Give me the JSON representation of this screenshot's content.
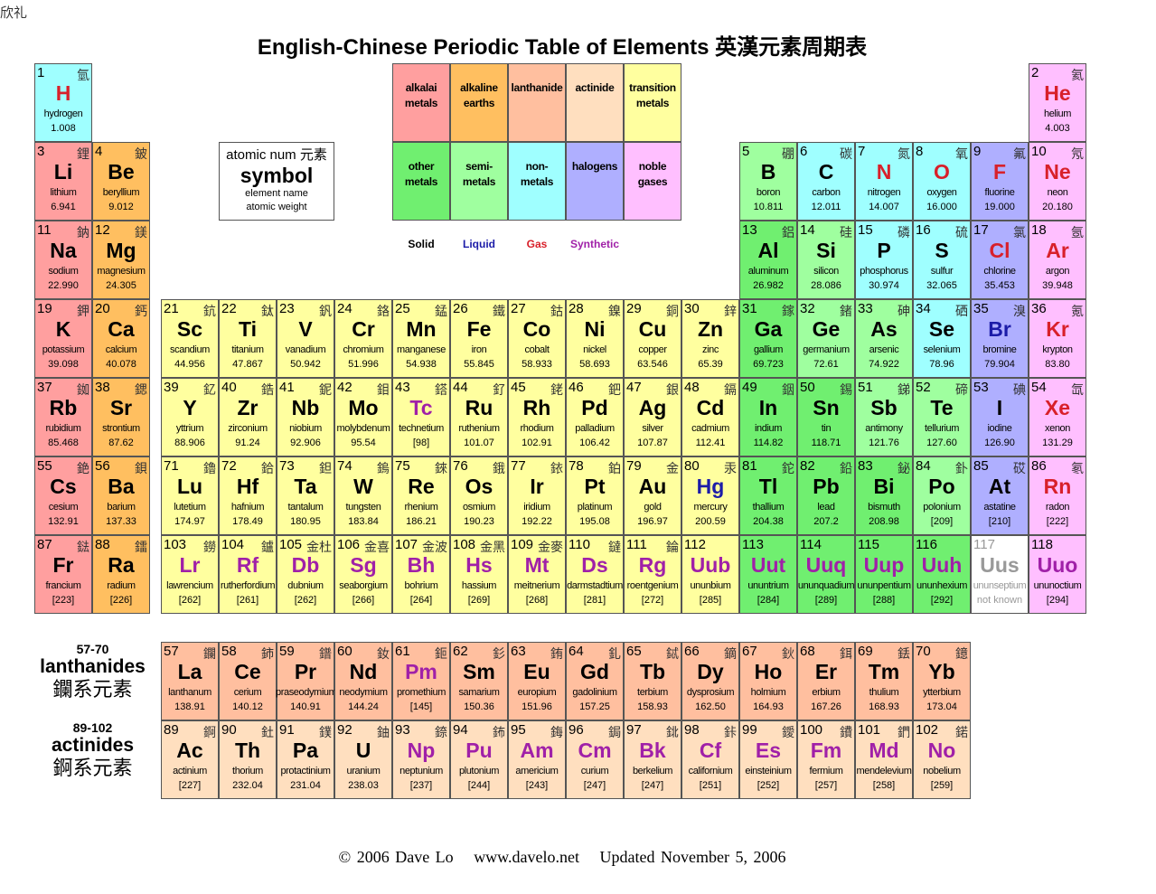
{
  "corner_text": "欣礼",
  "title": "English-Chinese Periodic Table of Elements 英漢元素周期表",
  "key": {
    "line1": "atomic num 元素",
    "line2": "symbol",
    "line3": "element name",
    "line4": "atomic weight"
  },
  "categories": {
    "alkali": {
      "label": "alkalai metals",
      "color": "#ff9f9f"
    },
    "alkaline": {
      "label": "alkaline earths",
      "color": "#ffbf60"
    },
    "lanthanide": {
      "label": "lanthanide",
      "color": "#ffbf9f"
    },
    "actinide": {
      "label": "actinide",
      "color": "#ffdfbf"
    },
    "transition": {
      "label": "transition metals",
      "color": "#ffff9f"
    },
    "other": {
      "label": "other metals",
      "color": "#70ef70"
    },
    "semi": {
      "label": "semi- metals",
      "color": "#9fff9f"
    },
    "nonmetal": {
      "label": "non- metals",
      "color": "#9fffff"
    },
    "halogen": {
      "label": "halogens",
      "color": "#afafff"
    },
    "noble": {
      "label": "noble gases",
      "color": "#ffbfff"
    },
    "unknown": {
      "label": "",
      "color": "#ffffff"
    }
  },
  "legend_order": [
    "alkali",
    "alkaline",
    "lanthanide",
    "actinide",
    "transition",
    "other",
    "semi",
    "nonmetal",
    "halogen",
    "noble"
  ],
  "states": [
    {
      "key": "solid",
      "label": "Solid",
      "color": "#000000"
    },
    {
      "key": "liquid",
      "label": "Liquid",
      "color": "#1c1ca8"
    },
    {
      "key": "gas",
      "label": "Gas",
      "color": "#d8202a"
    },
    {
      "key": "synthetic",
      "label": "Synthetic",
      "color": "#a020a8"
    }
  ],
  "unknown_color": "#999999",
  "series_labels": {
    "lanthanides": {
      "range": "57-70",
      "name": "lanthanides",
      "zh": "鑭系元素"
    },
    "actinides": {
      "range": "89-102",
      "name": "actinides",
      "zh": "錒系元素"
    }
  },
  "elements": [
    [
      1,
      "H",
      "hydrogen",
      "1.008",
      "氫",
      "nonmetal",
      "gas"
    ],
    [
      2,
      "He",
      "helium",
      "4.003",
      "氦",
      "noble",
      "gas"
    ],
    [
      3,
      "Li",
      "lithium",
      "6.941",
      "鋰",
      "alkali",
      "solid"
    ],
    [
      4,
      "Be",
      "beryllium",
      "9.012",
      "鈹",
      "alkaline",
      "solid"
    ],
    [
      5,
      "B",
      "boron",
      "10.811",
      "硼",
      "semi",
      "solid"
    ],
    [
      6,
      "C",
      "carbon",
      "12.011",
      "碳",
      "nonmetal",
      "solid"
    ],
    [
      7,
      "N",
      "nitrogen",
      "14.007",
      "氮",
      "nonmetal",
      "gas"
    ],
    [
      8,
      "O",
      "oxygen",
      "16.000",
      "氧",
      "nonmetal",
      "gas"
    ],
    [
      9,
      "F",
      "fluorine",
      "19.000",
      "氟",
      "halogen",
      "gas"
    ],
    [
      10,
      "Ne",
      "neon",
      "20.180",
      "氖",
      "noble",
      "gas"
    ],
    [
      11,
      "Na",
      "sodium",
      "22.990",
      "鈉",
      "alkali",
      "solid"
    ],
    [
      12,
      "Mg",
      "magnesium",
      "24.305",
      "鎂",
      "alkaline",
      "solid"
    ],
    [
      13,
      "Al",
      "aluminum",
      "26.982",
      "鋁",
      "other",
      "solid"
    ],
    [
      14,
      "Si",
      "silicon",
      "28.086",
      "硅",
      "semi",
      "solid"
    ],
    [
      15,
      "P",
      "phosphorus",
      "30.974",
      "磷",
      "nonmetal",
      "solid"
    ],
    [
      16,
      "S",
      "sulfur",
      "32.065",
      "硫",
      "nonmetal",
      "solid"
    ],
    [
      17,
      "Cl",
      "chlorine",
      "35.453",
      "氯",
      "halogen",
      "gas"
    ],
    [
      18,
      "Ar",
      "argon",
      "39.948",
      "氬",
      "noble",
      "gas"
    ],
    [
      19,
      "K",
      "potassium",
      "39.098",
      "鉀",
      "alkali",
      "solid"
    ],
    [
      20,
      "Ca",
      "calcium",
      "40.078",
      "鈣",
      "alkaline",
      "solid"
    ],
    [
      21,
      "Sc",
      "scandium",
      "44.956",
      "鈧",
      "transition",
      "solid"
    ],
    [
      22,
      "Ti",
      "titanium",
      "47.867",
      "鈦",
      "transition",
      "solid"
    ],
    [
      23,
      "V",
      "vanadium",
      "50.942",
      "釩",
      "transition",
      "solid"
    ],
    [
      24,
      "Cr",
      "chromium",
      "51.996",
      "鉻",
      "transition",
      "solid"
    ],
    [
      25,
      "Mn",
      "manganese",
      "54.938",
      "錳",
      "transition",
      "solid"
    ],
    [
      26,
      "Fe",
      "iron",
      "55.845",
      "鐵",
      "transition",
      "solid"
    ],
    [
      27,
      "Co",
      "cobalt",
      "58.933",
      "鈷",
      "transition",
      "solid"
    ],
    [
      28,
      "Ni",
      "nickel",
      "58.693",
      "鎳",
      "transition",
      "solid"
    ],
    [
      29,
      "Cu",
      "copper",
      "63.546",
      "銅",
      "transition",
      "solid"
    ],
    [
      30,
      "Zn",
      "zinc",
      "65.39",
      "鋅",
      "transition",
      "solid"
    ],
    [
      31,
      "Ga",
      "gallium",
      "69.723",
      "鎵",
      "other",
      "solid"
    ],
    [
      32,
      "Ge",
      "germanium",
      "72.61",
      "鍺",
      "semi",
      "solid"
    ],
    [
      33,
      "As",
      "arsenic",
      "74.922",
      "砷",
      "semi",
      "solid"
    ],
    [
      34,
      "Se",
      "selenium",
      "78.96",
      "硒",
      "nonmetal",
      "solid"
    ],
    [
      35,
      "Br",
      "bromine",
      "79.904",
      "溴",
      "halogen",
      "liquid"
    ],
    [
      36,
      "Kr",
      "krypton",
      "83.80",
      "氪",
      "noble",
      "gas"
    ],
    [
      37,
      "Rb",
      "rubidium",
      "85.468",
      "銣",
      "alkali",
      "solid"
    ],
    [
      38,
      "Sr",
      "strontium",
      "87.62",
      "鍶",
      "alkaline",
      "solid"
    ],
    [
      39,
      "Y",
      "yttrium",
      "88.906",
      "釔",
      "transition",
      "solid"
    ],
    [
      40,
      "Zr",
      "zirconium",
      "91.24",
      "鋯",
      "transition",
      "solid"
    ],
    [
      41,
      "Nb",
      "niobium",
      "92.906",
      "鈮",
      "transition",
      "solid"
    ],
    [
      42,
      "Mo",
      "molybdenum",
      "95.54",
      "鉬",
      "transition",
      "solid"
    ],
    [
      43,
      "Tc",
      "technetium",
      "[98]",
      "鎝",
      "transition",
      "synthetic"
    ],
    [
      44,
      "Ru",
      "ruthenium",
      "101.07",
      "釕",
      "transition",
      "solid"
    ],
    [
      45,
      "Rh",
      "rhodium",
      "102.91",
      "銠",
      "transition",
      "solid"
    ],
    [
      46,
      "Pd",
      "palladium",
      "106.42",
      "鈀",
      "transition",
      "solid"
    ],
    [
      47,
      "Ag",
      "silver",
      "107.87",
      "銀",
      "transition",
      "solid"
    ],
    [
      48,
      "Cd",
      "cadmium",
      "112.41",
      "鎘",
      "transition",
      "solid"
    ],
    [
      49,
      "In",
      "indium",
      "114.82",
      "銦",
      "other",
      "solid"
    ],
    [
      50,
      "Sn",
      "tin",
      "118.71",
      "錫",
      "other",
      "solid"
    ],
    [
      51,
      "Sb",
      "antimony",
      "121.76",
      "銻",
      "semi",
      "solid"
    ],
    [
      52,
      "Te",
      "tellurium",
      "127.60",
      "碲",
      "semi",
      "solid"
    ],
    [
      53,
      "I",
      "iodine",
      "126.90",
      "碘",
      "halogen",
      "solid"
    ],
    [
      54,
      "Xe",
      "xenon",
      "131.29",
      "氙",
      "noble",
      "gas"
    ],
    [
      55,
      "Cs",
      "cesium",
      "132.91",
      "銫",
      "alkali",
      "solid"
    ],
    [
      56,
      "Ba",
      "barium",
      "137.33",
      "鋇",
      "alkaline",
      "solid"
    ],
    [
      57,
      "La",
      "lanthanum",
      "138.91",
      "鑭",
      "lanthanide",
      "solid"
    ],
    [
      58,
      "Ce",
      "cerium",
      "140.12",
      "鈰",
      "lanthanide",
      "solid"
    ],
    [
      59,
      "Pr",
      "praseodymium",
      "140.91",
      "鐠",
      "lanthanide",
      "solid"
    ],
    [
      60,
      "Nd",
      "neodymium",
      "144.24",
      "釹",
      "lanthanide",
      "solid"
    ],
    [
      61,
      "Pm",
      "promethium",
      "[145]",
      "鉕",
      "lanthanide",
      "synthetic"
    ],
    [
      62,
      "Sm",
      "samarium",
      "150.36",
      "釤",
      "lanthanide",
      "solid"
    ],
    [
      63,
      "Eu",
      "europium",
      "151.96",
      "銪",
      "lanthanide",
      "solid"
    ],
    [
      64,
      "Gd",
      "gadolinium",
      "157.25",
      "釓",
      "lanthanide",
      "solid"
    ],
    [
      65,
      "Tb",
      "terbium",
      "158.93",
      "鋱",
      "lanthanide",
      "solid"
    ],
    [
      66,
      "Dy",
      "dysprosium",
      "162.50",
      "鏑",
      "lanthanide",
      "solid"
    ],
    [
      67,
      "Ho",
      "holmium",
      "164.93",
      "鈥",
      "lanthanide",
      "solid"
    ],
    [
      68,
      "Er",
      "erbium",
      "167.26",
      "鉺",
      "lanthanide",
      "solid"
    ],
    [
      69,
      "Tm",
      "thulium",
      "168.93",
      "銩",
      "lanthanide",
      "solid"
    ],
    [
      70,
      "Yb",
      "ytterbium",
      "173.04",
      "鐿",
      "lanthanide",
      "solid"
    ],
    [
      71,
      "Lu",
      "lutetium",
      "174.97",
      "鑥",
      "transition",
      "solid"
    ],
    [
      72,
      "Hf",
      "hafnium",
      "178.49",
      "鉿",
      "transition",
      "solid"
    ],
    [
      73,
      "Ta",
      "tantalum",
      "180.95",
      "鉭",
      "transition",
      "solid"
    ],
    [
      74,
      "W",
      "tungsten",
      "183.84",
      "鎢",
      "transition",
      "solid"
    ],
    [
      75,
      "Re",
      "rhenium",
      "186.21",
      "錸",
      "transition",
      "solid"
    ],
    [
      76,
      "Os",
      "osmium",
      "190.23",
      "鋨",
      "transition",
      "solid"
    ],
    [
      77,
      "Ir",
      "iridium",
      "192.22",
      "銥",
      "transition",
      "solid"
    ],
    [
      78,
      "Pt",
      "platinum",
      "195.08",
      "鉑",
      "transition",
      "solid"
    ],
    [
      79,
      "Au",
      "gold",
      "196.97",
      "金",
      "transition",
      "solid"
    ],
    [
      80,
      "Hg",
      "mercury",
      "200.59",
      "汞",
      "transition",
      "liquid"
    ],
    [
      81,
      "Tl",
      "thallium",
      "204.38",
      "鉈",
      "other",
      "solid"
    ],
    [
      82,
      "Pb",
      "lead",
      "207.2",
      "鉛",
      "other",
      "solid"
    ],
    [
      83,
      "Bi",
      "bismuth",
      "208.98",
      "鉍",
      "other",
      "solid"
    ],
    [
      84,
      "Po",
      "polonium",
      "[209]",
      "釙",
      "semi",
      "solid"
    ],
    [
      85,
      "At",
      "astatine",
      "[210]",
      "砹",
      "halogen",
      "solid"
    ],
    [
      86,
      "Rn",
      "radon",
      "[222]",
      "氡",
      "noble",
      "gas"
    ],
    [
      87,
      "Fr",
      "francium",
      "[223]",
      "鍅",
      "alkali",
      "solid"
    ],
    [
      88,
      "Ra",
      "radium",
      "[226]",
      "鐳",
      "alkaline",
      "solid"
    ],
    [
      89,
      "Ac",
      "actinium",
      "[227]",
      "錒",
      "actinide",
      "solid"
    ],
    [
      90,
      "Th",
      "thorium",
      "232.04",
      "釷",
      "actinide",
      "solid"
    ],
    [
      91,
      "Pa",
      "protactinium",
      "231.04",
      "鏷",
      "actinide",
      "solid"
    ],
    [
      92,
      "U",
      "uranium",
      "238.03",
      "鈾",
      "actinide",
      "solid"
    ],
    [
      93,
      "Np",
      "neptunium",
      "[237]",
      "錼",
      "actinide",
      "synthetic"
    ],
    [
      94,
      "Pu",
      "plutonium",
      "[244]",
      "鈽",
      "actinide",
      "synthetic"
    ],
    [
      95,
      "Am",
      "americium",
      "[243]",
      "鋂",
      "actinide",
      "synthetic"
    ],
    [
      96,
      "Cm",
      "curium",
      "[247]",
      "鋦",
      "actinide",
      "synthetic"
    ],
    [
      97,
      "Bk",
      "berkelium",
      "[247]",
      "鉳",
      "actinide",
      "synthetic"
    ],
    [
      98,
      "Cf",
      "californium",
      "[251]",
      "鉲",
      "actinide",
      "synthetic"
    ],
    [
      99,
      "Es",
      "einsteinium",
      "[252]",
      "鑀",
      "actinide",
      "synthetic"
    ],
    [
      100,
      "Fm",
      "fermium",
      "[257]",
      "鐨",
      "actinide",
      "synthetic"
    ],
    [
      101,
      "Md",
      "mendelevium",
      "[258]",
      "鍆",
      "actinide",
      "synthetic"
    ],
    [
      102,
      "No",
      "nobelium",
      "[259]",
      "鍩",
      "actinide",
      "synthetic"
    ],
    [
      103,
      "Lr",
      "lawrencium",
      "[262]",
      "鐒",
      "transition",
      "synthetic"
    ],
    [
      104,
      "Rf",
      "rutherfordium",
      "[261]",
      "鑪",
      "transition",
      "synthetic"
    ],
    [
      105,
      "Db",
      "dubnium",
      "[262]",
      "金杜",
      "transition",
      "synthetic"
    ],
    [
      106,
      "Sg",
      "seaborgium",
      "[266]",
      "金喜",
      "transition",
      "synthetic"
    ],
    [
      107,
      "Bh",
      "bohrium",
      "[264]",
      "金波",
      "transition",
      "synthetic"
    ],
    [
      108,
      "Hs",
      "hassium",
      "[269]",
      "金黑",
      "transition",
      "synthetic"
    ],
    [
      109,
      "Mt",
      "meitnerium",
      "[268]",
      "金麥",
      "transition",
      "synthetic"
    ],
    [
      110,
      "Ds",
      "darmstadtium",
      "[281]",
      "鐽",
      "transition",
      "synthetic"
    ],
    [
      111,
      "Rg",
      "roentgenium",
      "[272]",
      "錀",
      "transition",
      "synthetic"
    ],
    [
      112,
      "Uub",
      "ununbium",
      "[285]",
      "",
      "transition",
      "synthetic"
    ],
    [
      113,
      "Uut",
      "ununtrium",
      "[284]",
      "",
      "other",
      "synthetic"
    ],
    [
      114,
      "Uuq",
      "ununquadium",
      "[289]",
      "",
      "other",
      "synthetic"
    ],
    [
      115,
      "Uup",
      "ununpentium",
      "[288]",
      "",
      "other",
      "synthetic"
    ],
    [
      116,
      "Uuh",
      "ununhexium",
      "[292]",
      "",
      "other",
      "synthetic"
    ],
    [
      117,
      "Uus",
      "ununseptium",
      "not known",
      "",
      "unknown",
      "unknown"
    ],
    [
      118,
      "Uuo",
      "ununoctium",
      "[294]",
      "",
      "noble",
      "synthetic"
    ]
  ],
  "footer": {
    "copyright": "© 2006 Dave Lo",
    "website": "www.davelo.net",
    "updated": "Updated November 5, 2006"
  }
}
